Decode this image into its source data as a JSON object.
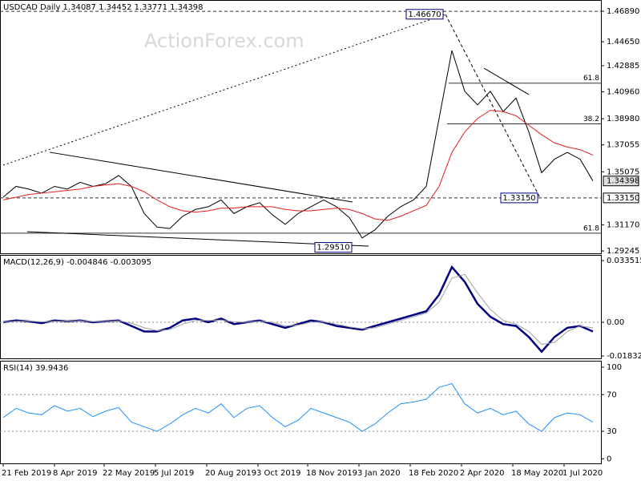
{
  "chart_data": [
    {
      "type": "line",
      "title": "USDCAD Daily 1.34087 1.34452 1.33771 1.34398",
      "watermark": "ActionForex.com",
      "x": [
        0,
        8,
        16,
        24,
        32,
        40,
        48,
        56,
        64,
        72,
        80,
        88,
        96,
        104,
        112,
        120,
        128,
        136,
        144,
        152,
        160,
        168,
        176,
        184,
        192,
        200,
        208,
        216,
        224,
        232,
        240,
        248,
        256,
        264,
        272,
        280,
        288,
        296,
        304,
        312,
        320,
        328,
        336,
        344,
        352,
        360,
        368
      ],
      "xlim": [
        -2,
        373
      ],
      "xticks": [
        {
          "value": 0,
          "label": "21 Feb 2019"
        },
        {
          "value": 32,
          "label": "8 Apr 2019"
        },
        {
          "value": 63,
          "label": "22 May 2019"
        },
        {
          "value": 95,
          "label": "5 Jul 2019"
        },
        {
          "value": 127,
          "label": "20 Aug 2019"
        },
        {
          "value": 159,
          "label": "3 Oct 2019"
        },
        {
          "value": 190,
          "label": "18 Nov 2019"
        },
        {
          "value": 222,
          "label": "3 Jan 2020"
        },
        {
          "value": 254,
          "label": "18 Feb 2020"
        },
        {
          "value": 286,
          "label": "2 Apr 2020"
        },
        {
          "value": 318,
          "label": "18 May 2020"
        },
        {
          "value": 350,
          "label": "1 Jul 2020"
        }
      ],
      "ylim": [
        1.2907,
        1.4772
      ],
      "yticks": [
        {
          "value": 1.4689,
          "label": "1.46890"
        },
        {
          "value": 1.4465,
          "label": "1.44650"
        },
        {
          "value": 1.42885,
          "label": "1.42885"
        },
        {
          "value": 1.4096,
          "label": "1.40960"
        },
        {
          "value": 1.3898,
          "label": "1.38980"
        },
        {
          "value": 1.37055,
          "label": "1.37055"
        },
        {
          "value": 1.35075,
          "label": "1.35075"
        },
        {
          "value": 1.3117,
          "label": "1.31170"
        },
        {
          "value": 1.29245,
          "label": "1.29245"
        }
      ],
      "series": [
        {
          "name": "USDCAD",
          "color": "#000000",
          "width": 1,
          "values": [
            1.332,
            1.34,
            1.338,
            1.335,
            1.34,
            1.338,
            1.343,
            1.34,
            1.342,
            1.348,
            1.34,
            1.32,
            1.31,
            1.309,
            1.318,
            1.323,
            1.325,
            1.33,
            1.32,
            1.325,
            1.328,
            1.319,
            1.312,
            1.32,
            1.325,
            1.33,
            1.325,
            1.317,
            1.302,
            1.308,
            1.318,
            1.325,
            1.33,
            1.34,
            1.39,
            1.44,
            1.41,
            1.4,
            1.41,
            1.395,
            1.405,
            1.38,
            1.35,
            1.36,
            1.365,
            1.36,
            1.344
          ]
        },
        {
          "name": "SMA",
          "color": "#e02020",
          "width": 1,
          "values": [
            1.33,
            1.332,
            1.334,
            1.335,
            1.336,
            1.337,
            1.338,
            1.34,
            1.341,
            1.342,
            1.34,
            1.336,
            1.33,
            1.325,
            1.322,
            1.321,
            1.322,
            1.324,
            1.324,
            1.325,
            1.325,
            1.325,
            1.323,
            1.322,
            1.322,
            1.323,
            1.324,
            1.323,
            1.32,
            1.316,
            1.315,
            1.318,
            1.322,
            1.326,
            1.34,
            1.365,
            1.38,
            1.39,
            1.396,
            1.395,
            1.392,
            1.385,
            1.378,
            1.372,
            1.369,
            1.367,
            1.363
          ]
        }
      ],
      "lines": [
        {
          "from": [
            0,
            1.3556
          ],
          "to": [
            276,
            1.4666
          ],
          "style": "dotted"
        },
        {
          "from": [
            29,
            1.3651
          ],
          "to": [
            218,
            1.3285
          ],
          "style": "solid"
        },
        {
          "from": [
            15,
            1.3066
          ],
          "to": [
            228,
            1.296
          ],
          "style": "solid"
        },
        {
          "from": [
            276,
            1.4666
          ],
          "to": [
            335,
            1.3315
          ],
          "style": "dashed"
        },
        {
          "from": [
            300,
            1.427
          ],
          "to": [
            328,
            1.4076
          ],
          "style": "solid"
        }
      ],
      "levels": [
        {
          "value": 1.4689,
          "from": -2,
          "style": "dashed"
        },
        {
          "value": 1.3315,
          "from": -2,
          "style": "dashed"
        },
        {
          "value": 1.416,
          "from": 278,
          "style": "solid",
          "label": "61.8"
        },
        {
          "value": 1.386,
          "from": 277,
          "style": "solid",
          "label": "38.2"
        },
        {
          "value": 1.3055,
          "from": -2,
          "style": "solid",
          "label": "61.8"
        }
      ],
      "markers": [
        {
          "value": 1.4667,
          "label": "1.46670",
          "x": 263
        },
        {
          "value": 1.3315,
          "label": "1.33150",
          "x": 322
        },
        {
          "value": 1.2951,
          "label": "1.29510",
          "x": 206
        }
      ],
      "axis_markers": [
        {
          "value": 1.34398,
          "label": "1.34398"
        },
        {
          "value": 1.3315,
          "label": "1.33150"
        }
      ]
    },
    {
      "type": "line",
      "title": "MACD(12,26,9) -0.004846 -0.003095",
      "x": [
        0,
        8,
        16,
        24,
        32,
        40,
        48,
        56,
        64,
        72,
        80,
        88,
        96,
        104,
        112,
        120,
        128,
        136,
        144,
        152,
        160,
        168,
        176,
        184,
        192,
        200,
        208,
        216,
        224,
        232,
        240,
        248,
        256,
        264,
        272,
        280,
        288,
        296,
        304,
        312,
        320,
        328,
        336,
        344,
        352,
        360,
        368
      ],
      "xlim": [
        -2,
        373
      ],
      "ylim": [
        -0.0196,
        0.0366
      ],
      "yticks": [
        {
          "value": 0.033515,
          "label": "0.033515"
        },
        {
          "value": 0,
          "label": "0.00"
        },
        {
          "value": -0.018324,
          "label": "-0.018324"
        }
      ],
      "reference_lines": [
        0
      ],
      "series": [
        {
          "name": "MACD",
          "color": "#000080",
          "width": 2.5,
          "values": [
            0.0,
            0.001,
            0.0005,
            -0.0005,
            0.001,
            0.0005,
            0.001,
            0.0,
            0.0005,
            0.001,
            -0.002,
            -0.005,
            -0.005,
            -0.003,
            0.001,
            0.002,
            0.0,
            0.002,
            -0.001,
            0.0,
            0.001,
            -0.001,
            -0.003,
            -0.001,
            0.001,
            0.0,
            -0.002,
            -0.003,
            -0.004,
            -0.002,
            0.0,
            0.002,
            0.004,
            0.006,
            0.015,
            0.03,
            0.022,
            0.01,
            0.003,
            -0.001,
            -0.002,
            -0.008,
            -0.016,
            -0.008,
            -0.003,
            -0.002,
            -0.005
          ]
        },
        {
          "name": "Signal",
          "color": "#a0a0a0",
          "width": 1,
          "values": [
            0.0,
            0.0005,
            0.0007,
            0.0002,
            0.0005,
            0.0006,
            0.0008,
            0.0004,
            0.0004,
            0.0008,
            -0.0005,
            -0.003,
            -0.0045,
            -0.004,
            -0.001,
            0.001,
            0.001,
            0.0012,
            0.0002,
            0.0,
            0.0005,
            0.0,
            -0.002,
            -0.0015,
            0.0,
            0.0002,
            -0.001,
            -0.0025,
            -0.0035,
            -0.003,
            -0.001,
            0.001,
            0.003,
            0.005,
            0.011,
            0.024,
            0.026,
            0.016,
            0.007,
            0.001,
            -0.001,
            -0.005,
            -0.012,
            -0.011,
            -0.005,
            -0.002,
            -0.003
          ]
        }
      ]
    },
    {
      "type": "line",
      "title": "RSI(14) 39.9436",
      "x": [
        0,
        8,
        16,
        24,
        32,
        40,
        48,
        56,
        64,
        72,
        80,
        88,
        96,
        104,
        112,
        120,
        128,
        136,
        144,
        152,
        160,
        168,
        176,
        184,
        192,
        200,
        208,
        216,
        224,
        232,
        240,
        248,
        256,
        264,
        272,
        280,
        288,
        296,
        304,
        312,
        320,
        328,
        336,
        344,
        352,
        360,
        368
      ],
      "xlim": [
        -2,
        373
      ],
      "ylim": [
        -5,
        107
      ],
      "yticks": [
        100,
        70,
        30,
        0
      ],
      "reference_lines": [
        70,
        30
      ],
      "series": [
        {
          "name": "RSI",
          "color": "#1e90ff",
          "width": 1,
          "values": [
            45,
            55,
            50,
            48,
            58,
            52,
            55,
            46,
            52,
            56,
            40,
            35,
            30,
            38,
            48,
            55,
            50,
            60,
            45,
            55,
            58,
            45,
            35,
            42,
            55,
            50,
            45,
            40,
            30,
            38,
            50,
            60,
            62,
            65,
            78,
            82,
            60,
            50,
            55,
            48,
            52,
            38,
            30,
            45,
            50,
            48,
            40
          ]
        }
      ]
    }
  ]
}
